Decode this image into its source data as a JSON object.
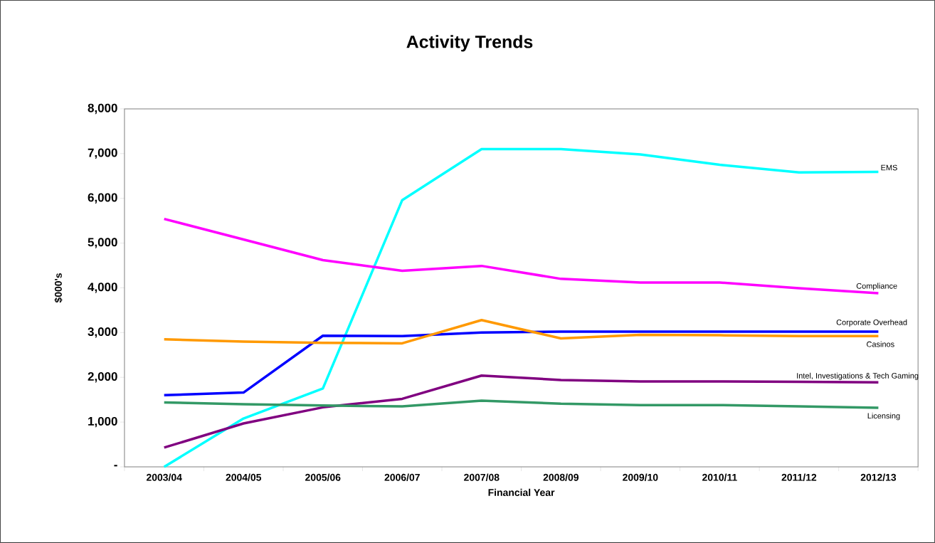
{
  "chart_data": {
    "type": "line",
    "title": "Activity Trends",
    "xlabel": "Financial Year",
    "ylabel": "$000's",
    "categories": [
      "2003/04",
      "2004/05",
      "2005/06",
      "2006/07",
      "2007/08",
      "2008/09",
      "2009/10",
      "2010/11",
      "2011/12",
      "2012/13"
    ],
    "ylim": [
      0,
      8000
    ],
    "yticks": [
      {
        "value": 0,
        "label": "-"
      },
      {
        "value": 1000,
        "label": "1,000"
      },
      {
        "value": 2000,
        "label": "2,000"
      },
      {
        "value": 3000,
        "label": "3,000"
      },
      {
        "value": 4000,
        "label": "4,000"
      },
      {
        "value": 5000,
        "label": "5,000"
      },
      {
        "value": 6000,
        "label": "6,000"
      },
      {
        "value": 7000,
        "label": "7,000"
      },
      {
        "value": 8000,
        "label": "8,000"
      }
    ],
    "grid": false,
    "legend": false,
    "marker": "none",
    "line_style": "solid",
    "series": [
      {
        "name": "EMS",
        "color": "#00ffff",
        "values": [
          0,
          1080,
          1750,
          5960,
          7100,
          7100,
          6980,
          6750,
          6580,
          6590
        ]
      },
      {
        "name": "Compliance",
        "color": "#ff00ff",
        "values": [
          5540,
          5080,
          4620,
          4380,
          4490,
          4200,
          4120,
          4120,
          3990,
          3880
        ]
      },
      {
        "name": "Corporate Overhead",
        "color": "#0000ff",
        "values": [
          1600,
          1660,
          2930,
          2920,
          3000,
          3020,
          3020,
          3020,
          3020,
          3020
        ]
      },
      {
        "name": "Casinos",
        "color": "#ff9900",
        "values": [
          2850,
          2800,
          2770,
          2760,
          3280,
          2870,
          2950,
          2940,
          2920,
          2920
        ]
      },
      {
        "name": "Intel, Investigations & Tech Gaming",
        "color": "#800080",
        "values": [
          430,
          970,
          1330,
          1520,
          2040,
          1940,
          1910,
          1910,
          1900,
          1890
        ]
      },
      {
        "name": "Licensing",
        "color": "#339966",
        "values": [
          1440,
          1400,
          1370,
          1350,
          1480,
          1410,
          1380,
          1380,
          1350,
          1320
        ]
      }
    ]
  }
}
